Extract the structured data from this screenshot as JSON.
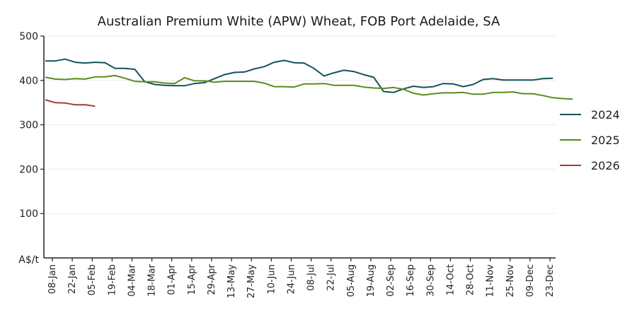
{
  "chart_data": {
    "type": "line",
    "title": "Australian Premium White (APW) Wheat, FOB Port Adelaide, SA",
    "unit_label": "A$/t",
    "ylim": [
      0,
      500
    ],
    "yticks": [
      100,
      200,
      300,
      400,
      500
    ],
    "grid": "horizontal",
    "legend_position": "right",
    "x_tick_labels": [
      "08-Jan",
      "22-Jan",
      "05-Feb",
      "19-Feb",
      "04-Mar",
      "18-Mar",
      "01-Apr",
      "15-Apr",
      "29-Apr",
      "13-May",
      "27-May",
      "10-Jun",
      "24-Jun",
      "08-Jul",
      "22-Jul",
      "05-Aug",
      "19-Aug",
      "02-Sep",
      "16-Sep",
      "30-Sep",
      "14-Oct",
      "28-Oct",
      "11-Nov",
      "25-Nov",
      "09-Dec",
      "23-Dec"
    ],
    "series": [
      {
        "name": "2024",
        "color": "#16525a",
        "values": [
          444,
          444,
          448,
          441,
          439,
          441,
          440,
          427,
          427,
          425,
          397,
          391,
          389,
          388,
          388,
          393,
          395,
          404,
          413,
          418,
          419,
          426,
          431,
          441,
          445,
          440,
          439,
          427,
          410,
          417,
          423,
          420,
          413,
          407,
          375,
          373,
          381,
          387,
          384,
          386,
          393,
          392,
          386,
          391,
          402,
          404,
          401,
          401,
          401,
          401,
          404,
          405
        ]
      },
      {
        "name": "2025",
        "color": "#5d8a1e",
        "values": [
          407,
          403,
          402,
          404,
          403,
          408,
          408,
          411,
          405,
          398,
          397,
          397,
          394,
          393,
          406,
          399,
          399,
          396,
          398,
          398,
          398,
          398,
          394,
          386,
          386,
          385,
          392,
          392,
          393,
          389,
          389,
          389,
          385,
          383,
          382,
          384,
          380,
          371,
          367,
          370,
          372,
          372,
          373,
          369,
          369,
          373,
          373,
          374,
          370,
          370,
          366,
          361,
          359,
          358
        ]
      },
      {
        "name": "2026",
        "color": "#a13f2e",
        "values": [
          356,
          350,
          349,
          345,
          345,
          342
        ]
      }
    ]
  }
}
